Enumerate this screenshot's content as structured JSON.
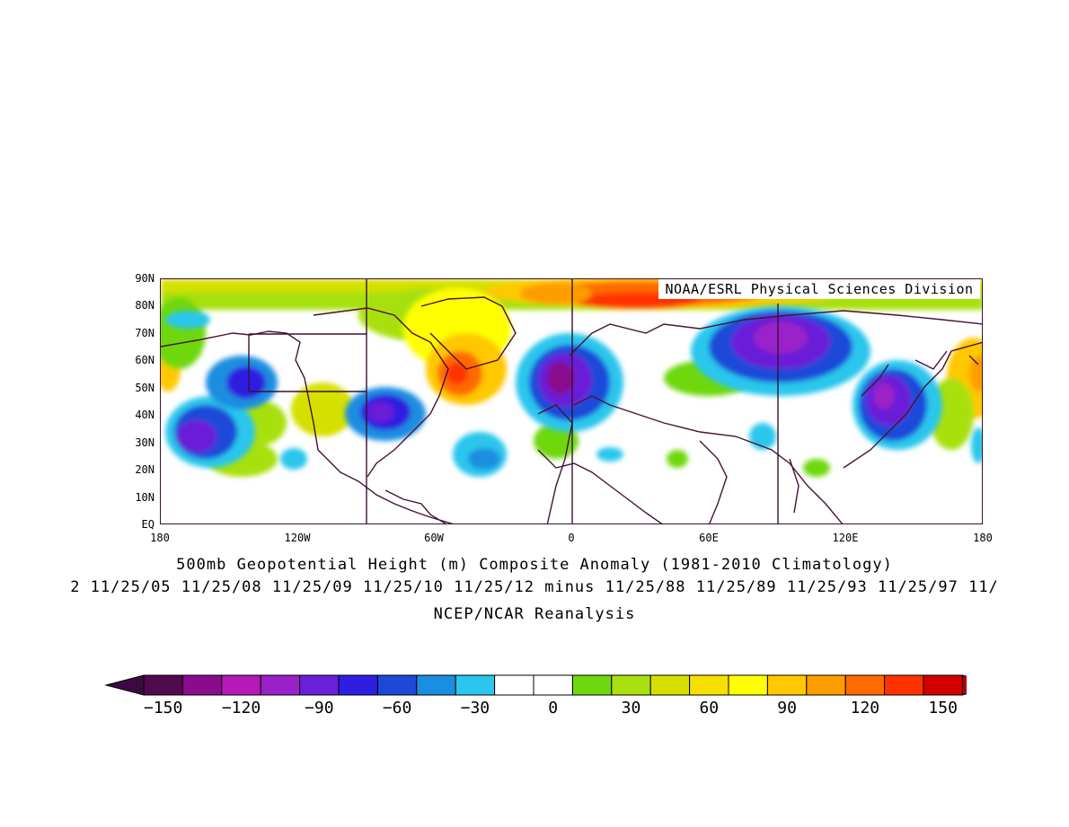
{
  "credit": "NOAA/ESRL Physical Sciences Division",
  "title": "500mb Geopotential Height (m) Composite Anomaly (1981-2010 Climatology)",
  "dates_line": "2 11/25/05 11/25/08 11/25/09 11/25/10 11/25/12 minus 11/25/88 11/25/89 11/25/93 11/25/97 11/",
  "source": "NCEP/NCAR Reanalysis",
  "lat_labels": [
    "90N",
    "80N",
    "70N",
    "60N",
    "50N",
    "40N",
    "30N",
    "20N",
    "10N",
    "EQ"
  ],
  "lon_labels": [
    "180",
    "120W",
    "60W",
    "0",
    "60E",
    "120E",
    "180"
  ],
  "colorbar_labels": [
    "-150",
    "-120",
    "-90",
    "-60",
    "-30",
    "0",
    "30",
    "60",
    "90",
    "120",
    "150"
  ],
  "colorbar_colors": [
    "#510950",
    "#8a0c8d",
    "#b51ab8",
    "#9a20c8",
    "#6a1fd8",
    "#2e1ee0",
    "#1e48d8",
    "#1a8ee0",
    "#2cc6ec",
    "#ffffff",
    "#ffffff",
    "#6ed810",
    "#a8e010",
    "#d6e000",
    "#f6e000",
    "#ffff00",
    "#ffc800",
    "#ff9c00",
    "#ff6a00",
    "#ff3200",
    "#d20000"
  ],
  "colorbar_ends": {
    "low": "#3c0a40",
    "high": "#b00000"
  }
}
